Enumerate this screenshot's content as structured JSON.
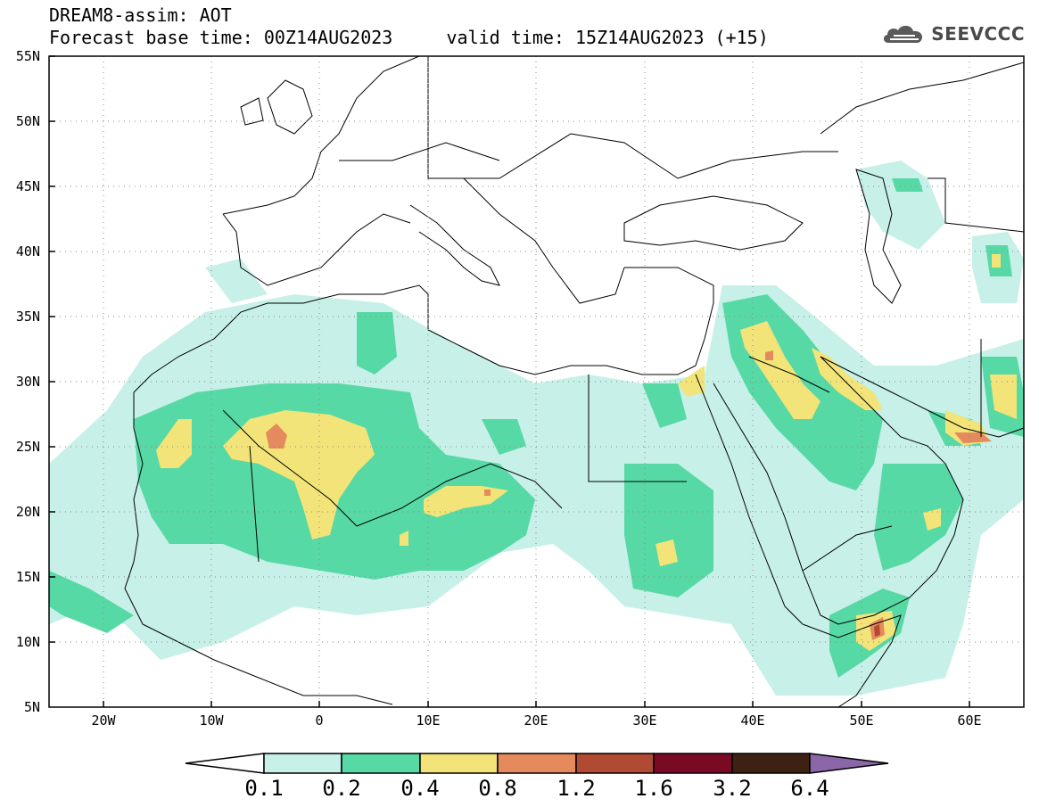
{
  "title": {
    "line1": "DREAM8-assim: AOT",
    "line2": "Forecast base time: 00Z14AUG2023     valid time: 15Z14AUG2023 (+15)"
  },
  "brand": {
    "name": "SEEVCCC",
    "icon": "cloud-logo-icon"
  },
  "map": {
    "lon_range": [
      -25,
      65
    ],
    "lat_range": [
      5,
      55
    ],
    "variable": "Aerosol optical thickness",
    "lat_labels": [
      "55N",
      "50N",
      "45N",
      "40N",
      "35N",
      "30N",
      "25N",
      "20N",
      "15N",
      "10N",
      "5N"
    ],
    "lon_labels": [
      "20W",
      "10W",
      "0",
      "10E",
      "20E",
      "30E",
      "40E",
      "50E",
      "60E"
    ],
    "grid": "dotted"
  },
  "colorbar": {
    "levels": [
      "0.1",
      "0.2",
      "0.4",
      "0.8",
      "1.2",
      "1.6",
      "3.2",
      "6.4"
    ],
    "colors": [
      "#ffffff",
      "#c6f0e8",
      "#57d9a6",
      "#f2e478",
      "#e58a5c",
      "#b14a32",
      "#7a0a24",
      "#3d2214",
      "#8b66a8"
    ]
  }
}
